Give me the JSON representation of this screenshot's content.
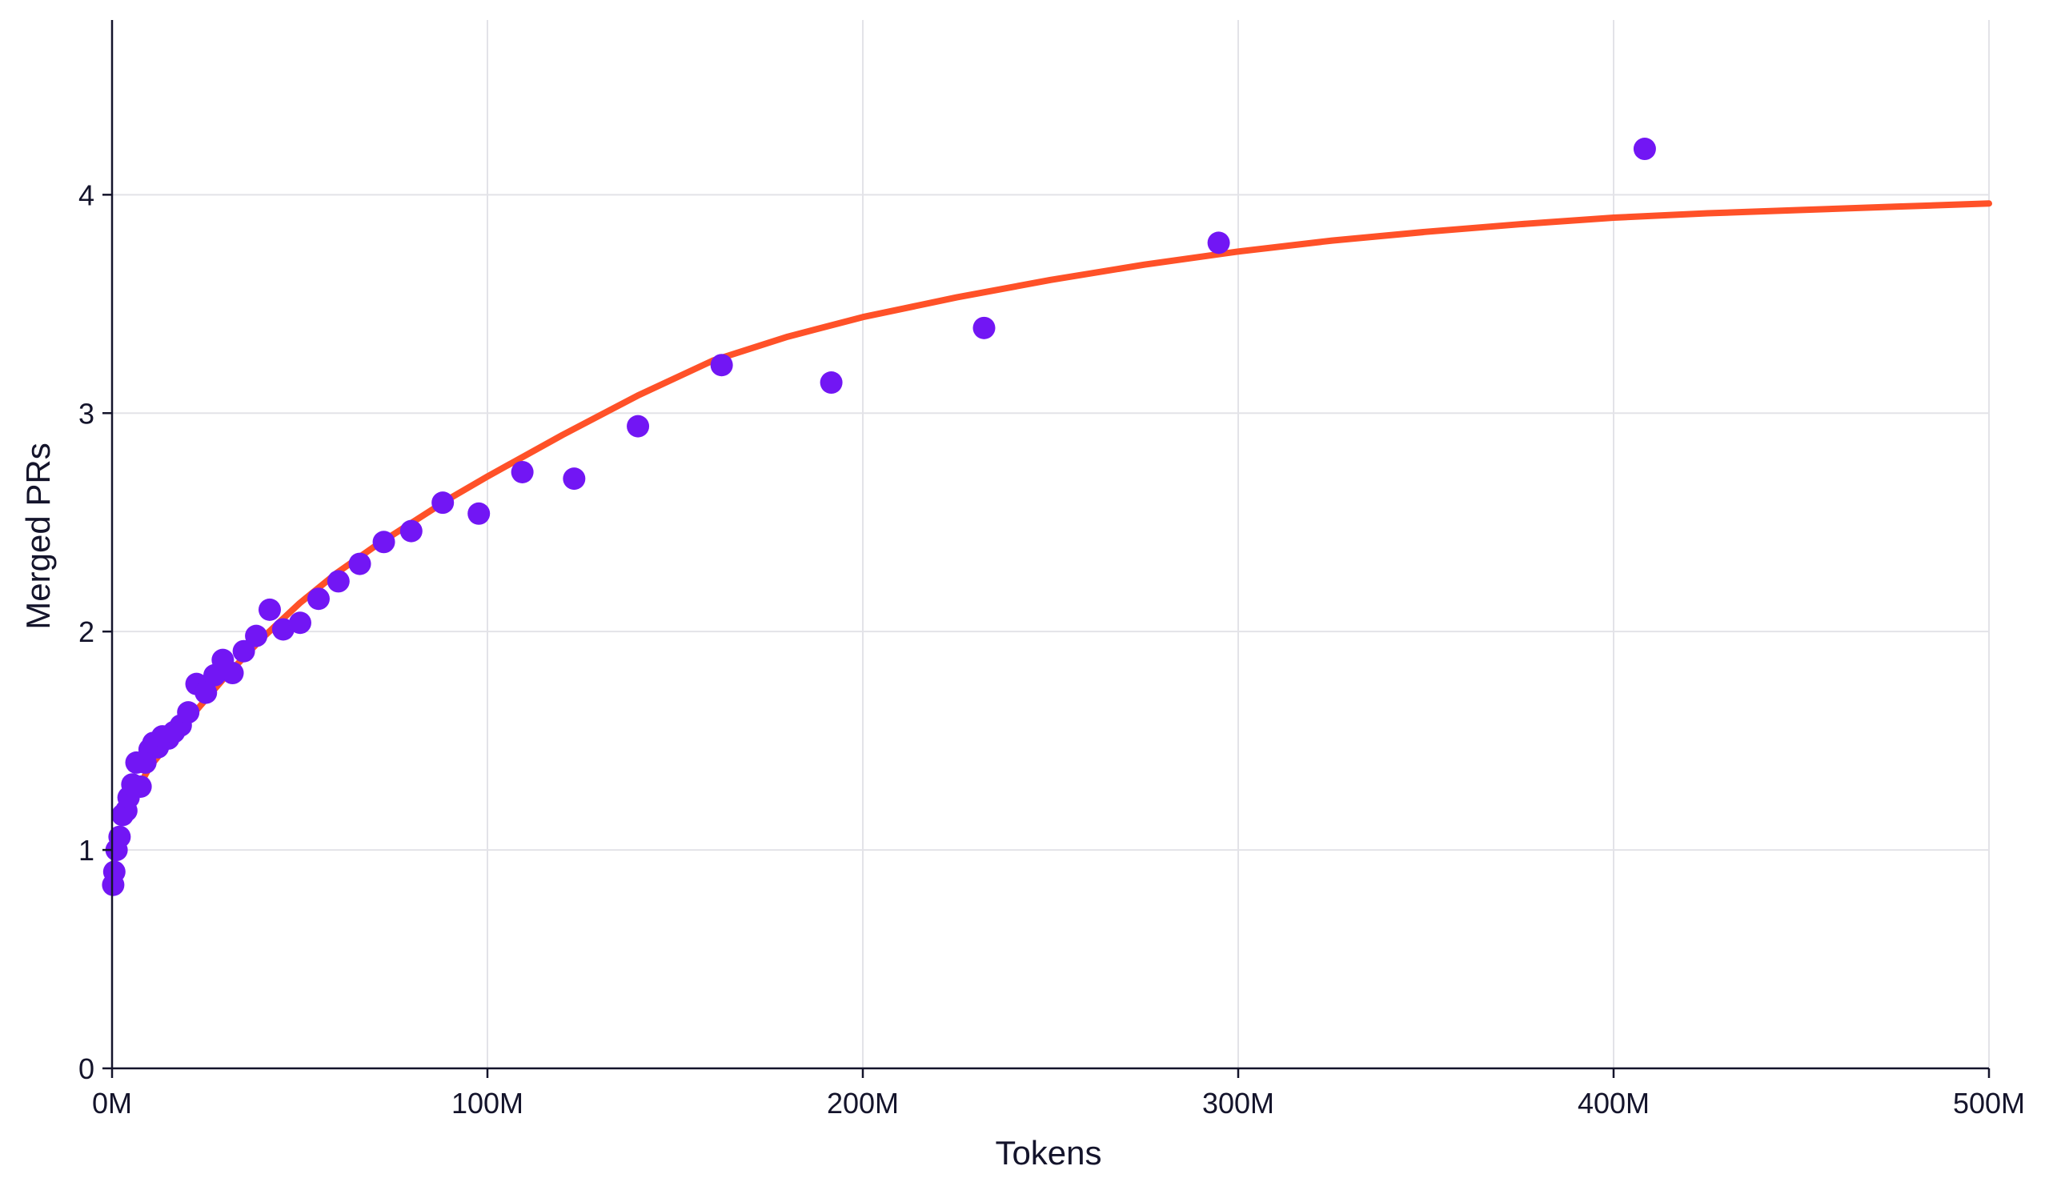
{
  "chart_data": {
    "type": "scatter",
    "title": "",
    "xlabel": "Tokens",
    "ylabel": "Merged PRs",
    "xlim": [
      0,
      500
    ],
    "ylim": [
      0,
      4.8
    ],
    "x_unit": "M tokens",
    "x_ticks": [
      {
        "value": 0,
        "label": "0M"
      },
      {
        "value": 100,
        "label": "100M"
      },
      {
        "value": 200,
        "label": "200M"
      },
      {
        "value": 300,
        "label": "300M"
      },
      {
        "value": 400,
        "label": "400M"
      },
      {
        "value": 500,
        "label": "500M"
      }
    ],
    "y_ticks": [
      {
        "value": 0,
        "label": "0"
      },
      {
        "value": 1,
        "label": "1"
      },
      {
        "value": 2,
        "label": "2"
      },
      {
        "value": 3,
        "label": "3"
      },
      {
        "value": 4,
        "label": "4"
      }
    ],
    "grid": true,
    "legend": "none",
    "colors": {
      "points": "#7216f4",
      "fit_line": "#ff5128",
      "axis": "#14142b",
      "grid": "#e3e3e8"
    },
    "series": [
      {
        "kind": "scatter",
        "points": [
          {
            "x": 0.3,
            "y": 0.84
          },
          {
            "x": 0.6,
            "y": 0.9
          },
          {
            "x": 1.2,
            "y": 1.0
          },
          {
            "x": 2,
            "y": 1.06
          },
          {
            "x": 2.8,
            "y": 1.16
          },
          {
            "x": 3.8,
            "y": 1.18
          },
          {
            "x": 4.4,
            "y": 1.24
          },
          {
            "x": 5.4,
            "y": 1.3
          },
          {
            "x": 6.5,
            "y": 1.4
          },
          {
            "x": 7.6,
            "y": 1.29
          },
          {
            "x": 8.9,
            "y": 1.4
          },
          {
            "x": 10,
            "y": 1.46
          },
          {
            "x": 11,
            "y": 1.49
          },
          {
            "x": 12.2,
            "y": 1.47
          },
          {
            "x": 13.4,
            "y": 1.52
          },
          {
            "x": 15,
            "y": 1.51
          },
          {
            "x": 16.5,
            "y": 1.54
          },
          {
            "x": 18.3,
            "y": 1.57
          },
          {
            "x": 20.3,
            "y": 1.63
          },
          {
            "x": 22.5,
            "y": 1.76
          },
          {
            "x": 25,
            "y": 1.72
          },
          {
            "x": 27.3,
            "y": 1.8
          },
          {
            "x": 29.5,
            "y": 1.87
          },
          {
            "x": 32.1,
            "y": 1.81
          },
          {
            "x": 35.1,
            "y": 1.91
          },
          {
            "x": 38.4,
            "y": 1.98
          },
          {
            "x": 42,
            "y": 2.1
          },
          {
            "x": 45.6,
            "y": 2.01
          },
          {
            "x": 50.1,
            "y": 2.04
          },
          {
            "x": 55,
            "y": 2.15
          },
          {
            "x": 60.3,
            "y": 2.23
          },
          {
            "x": 66,
            "y": 2.31
          },
          {
            "x": 72.4,
            "y": 2.41
          },
          {
            "x": 79.7,
            "y": 2.46
          },
          {
            "x": 88.1,
            "y": 2.59
          },
          {
            "x": 97.7,
            "y": 2.54
          },
          {
            "x": 109.3,
            "y": 2.73
          },
          {
            "x": 123.1,
            "y": 2.7
          },
          {
            "x": 140.1,
            "y": 2.94
          },
          {
            "x": 162.4,
            "y": 3.22
          },
          {
            "x": 191.6,
            "y": 3.14
          },
          {
            "x": 232.3,
            "y": 3.39
          },
          {
            "x": 294.8,
            "y": 3.78
          },
          {
            "x": 408.3,
            "y": 4.21
          }
        ]
      },
      {
        "kind": "fit_line",
        "points": [
          {
            "x": 5,
            "y": 1.22
          },
          {
            "x": 10,
            "y": 1.38
          },
          {
            "x": 20,
            "y": 1.59
          },
          {
            "x": 30,
            "y": 1.79
          },
          {
            "x": 40,
            "y": 1.97
          },
          {
            "x": 50,
            "y": 2.13
          },
          {
            "x": 60,
            "y": 2.27
          },
          {
            "x": 70,
            "y": 2.39
          },
          {
            "x": 80,
            "y": 2.5
          },
          {
            "x": 90,
            "y": 2.61
          },
          {
            "x": 100,
            "y": 2.71
          },
          {
            "x": 120,
            "y": 2.9
          },
          {
            "x": 140,
            "y": 3.08
          },
          {
            "x": 160,
            "y": 3.24
          },
          {
            "x": 180,
            "y": 3.35
          },
          {
            "x": 200,
            "y": 3.44
          },
          {
            "x": 225,
            "y": 3.53
          },
          {
            "x": 250,
            "y": 3.61
          },
          {
            "x": 275,
            "y": 3.68
          },
          {
            "x": 300,
            "y": 3.74
          },
          {
            "x": 325,
            "y": 3.79
          },
          {
            "x": 350,
            "y": 3.83
          },
          {
            "x": 375,
            "y": 3.865
          },
          {
            "x": 400,
            "y": 3.895
          },
          {
            "x": 425,
            "y": 3.915
          },
          {
            "x": 450,
            "y": 3.93
          },
          {
            "x": 475,
            "y": 3.945
          },
          {
            "x": 500,
            "y": 3.96
          }
        ]
      }
    ]
  }
}
